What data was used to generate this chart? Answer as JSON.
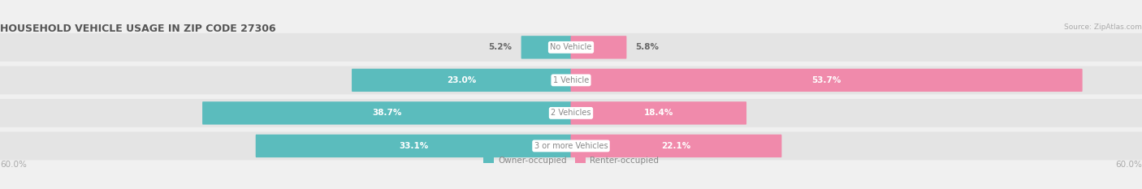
{
  "title": "HOUSEHOLD VEHICLE USAGE IN ZIP CODE 27306",
  "source": "Source: ZipAtlas.com",
  "categories": [
    "No Vehicle",
    "1 Vehicle",
    "2 Vehicles",
    "3 or more Vehicles"
  ],
  "owner_values": [
    5.2,
    23.0,
    38.7,
    33.1
  ],
  "renter_values": [
    5.8,
    53.7,
    18.4,
    22.1
  ],
  "owner_color": "#5bbcbd",
  "renter_color": "#f08aab",
  "axis_max": 60.0,
  "axis_label_left": "60.0%",
  "axis_label_right": "60.0%",
  "bar_height": 0.62,
  "background_color": "#f0f0f0",
  "bar_background_color": "#e2e2e2",
  "row_bg_color": "#e4e4e4",
  "separator_color": "#ffffff",
  "label_color_white": "#ffffff",
  "label_color_dark": "#666666",
  "center_label_bg": "#ffffff",
  "center_label_color": "#888888",
  "legend_color": "#888888",
  "axis_tick_color": "#aaaaaa",
  "title_color": "#555555",
  "source_color": "#aaaaaa"
}
